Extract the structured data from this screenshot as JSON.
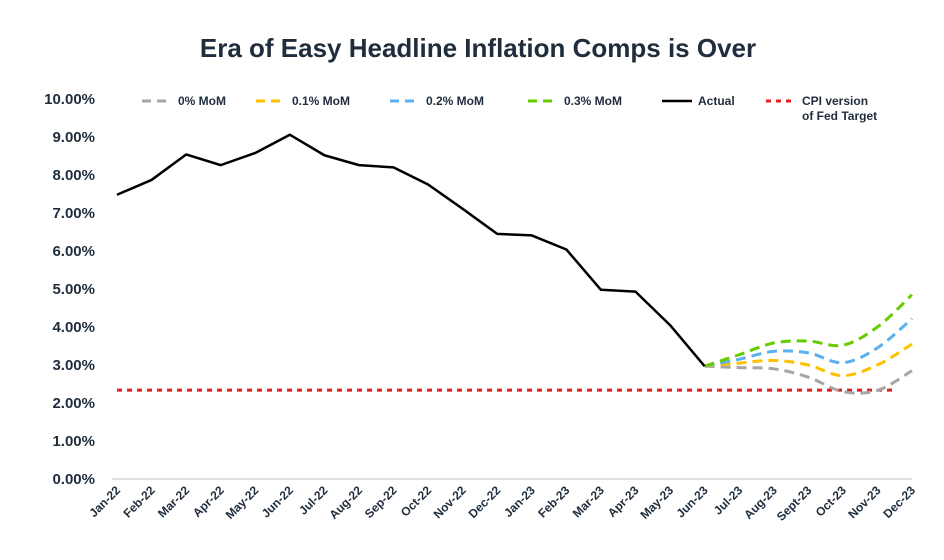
{
  "chart_data": {
    "type": "line",
    "title": "Era of Easy Headline Inflation Comps is Over",
    "xlabel": "",
    "ylabel": "",
    "ylim": [
      0,
      10
    ],
    "y_tick_labels": [
      "0.00%",
      "1.00%",
      "2.00%",
      "3.00%",
      "4.00%",
      "5.00%",
      "6.00%",
      "7.00%",
      "8.00%",
      "9.00%",
      "10.00%"
    ],
    "grid": false,
    "legend_position": "top",
    "categories": [
      "Jan-22",
      "Feb-22",
      "Mar-22",
      "Apr-22",
      "May-22",
      "Jun-22",
      "Jul-22",
      "Aug-22",
      "Sep-22",
      "Oct-22",
      "Nov-22",
      "Dec-22",
      "Jan-23",
      "Feb-23",
      "Mar-23",
      "Apr-23",
      "May-23",
      "Jun-23",
      "Jul-23",
      "Aug-23",
      "Sept-23",
      "Oct-23",
      "Nov-23",
      "Dec-23"
    ],
    "series": [
      {
        "name": "0% MoM",
        "color": "#a6a6a6",
        "style": "dashed",
        "values": [
          null,
          null,
          null,
          null,
          null,
          null,
          null,
          null,
          null,
          null,
          null,
          null,
          null,
          null,
          null,
          null,
          null,
          2.97,
          2.93,
          2.9,
          2.68,
          2.3,
          2.33,
          2.85
        ]
      },
      {
        "name": "0.1% MoM",
        "color": "#ffc000",
        "style": "dashed",
        "values": [
          null,
          null,
          null,
          null,
          null,
          null,
          null,
          null,
          null,
          null,
          null,
          null,
          null,
          null,
          null,
          null,
          null,
          2.97,
          3.05,
          3.12,
          3.0,
          2.72,
          3.0,
          3.55
        ]
      },
      {
        "name": "0.2% MoM",
        "color": "#5bb0f0",
        "style": "dashed",
        "values": [
          null,
          null,
          null,
          null,
          null,
          null,
          null,
          null,
          null,
          null,
          null,
          null,
          null,
          null,
          null,
          null,
          null,
          2.97,
          3.15,
          3.36,
          3.32,
          3.06,
          3.45,
          4.22
        ]
      },
      {
        "name": "0.3% MoM",
        "color": "#66cc00",
        "style": "dashed",
        "values": [
          null,
          null,
          null,
          null,
          null,
          null,
          null,
          null,
          null,
          null,
          null,
          null,
          null,
          null,
          null,
          null,
          null,
          2.97,
          3.27,
          3.58,
          3.63,
          3.52,
          4.0,
          4.85
        ]
      },
      {
        "name": "Actual",
        "color": "#000000",
        "style": "solid",
        "values": [
          7.48,
          7.87,
          8.54,
          8.26,
          8.58,
          9.06,
          8.52,
          8.26,
          8.2,
          7.75,
          7.11,
          6.45,
          6.41,
          6.04,
          4.98,
          4.93,
          4.05,
          2.97,
          null,
          null,
          null,
          null,
          null,
          null
        ]
      },
      {
        "name": "CPI version\nof Fed Target",
        "legend_lines": [
          "CPI version",
          "of Fed Target"
        ],
        "color": "#e41e1e",
        "style": "dotted",
        "values": [
          2.34,
          2.34,
          2.34,
          2.34,
          2.34,
          2.34,
          2.34,
          2.34,
          2.34,
          2.34,
          2.34,
          2.34,
          2.34,
          2.34,
          2.34,
          2.34,
          2.34,
          2.34,
          2.34,
          2.34,
          2.34,
          2.34,
          2.34,
          2.34
        ]
      }
    ]
  }
}
